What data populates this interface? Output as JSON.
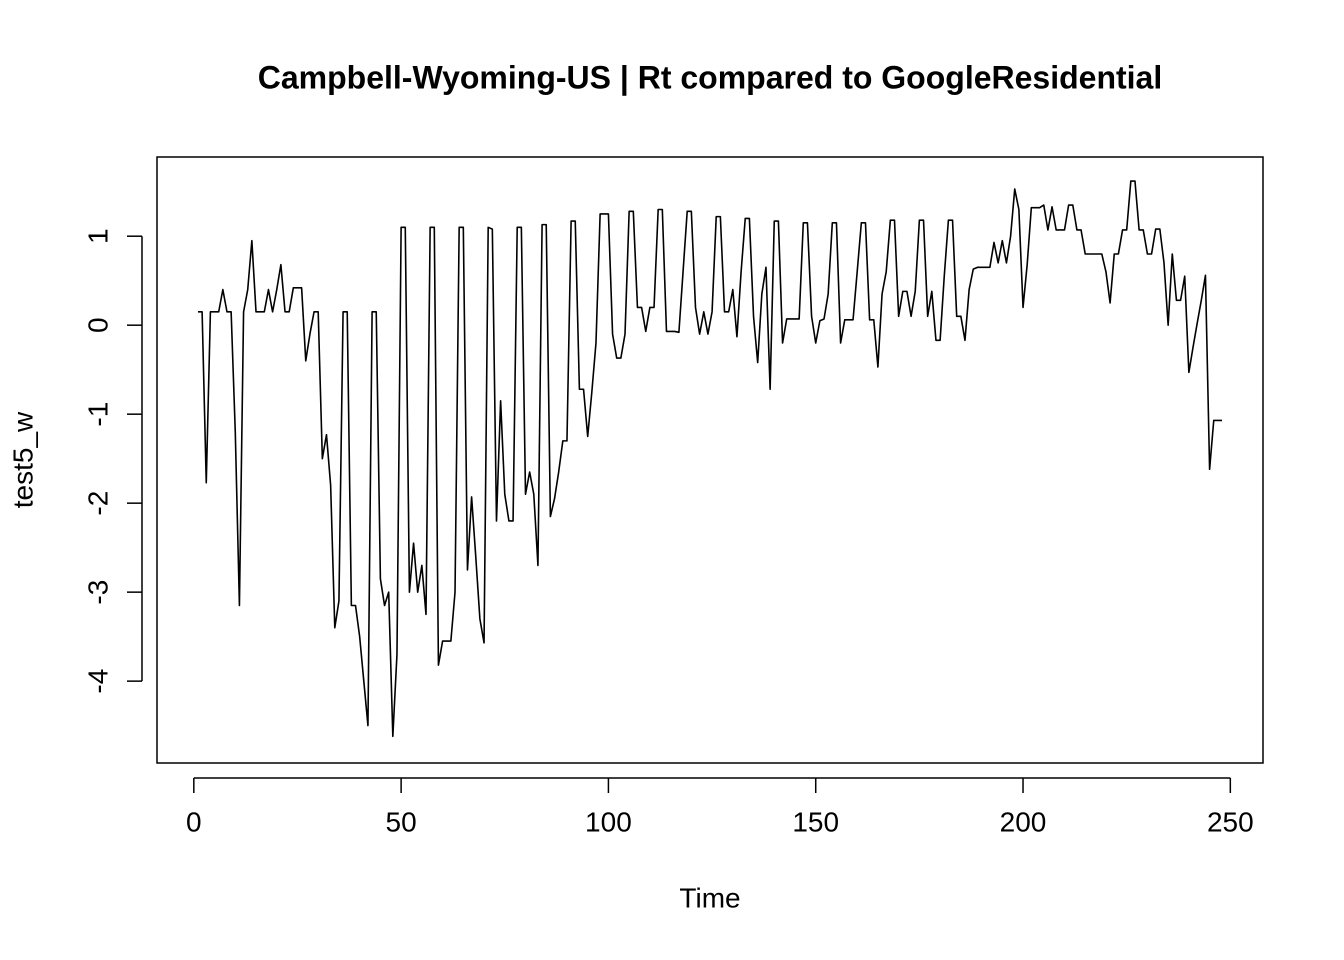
{
  "chart_data": {
    "type": "line",
    "title": "Campbell-Wyoming-US | Rt compared to GoogleResidential",
    "x_label": "Time",
    "y_label": "test5_w",
    "color": "#000000",
    "x": [
      1,
      2,
      3,
      4,
      5,
      6,
      7,
      8,
      9,
      10,
      11,
      12,
      13,
      14,
      15,
      16,
      17,
      18,
      19,
      20,
      21,
      22,
      23,
      24,
      25,
      26,
      27,
      28,
      29,
      30,
      31,
      32,
      33,
      34,
      35,
      36,
      37,
      38,
      39,
      40,
      41,
      42,
      43,
      44,
      45,
      46,
      47,
      48,
      49,
      50,
      51,
      52,
      53,
      54,
      55,
      56,
      57,
      58,
      59,
      60,
      61,
      62,
      63,
      64,
      65,
      66,
      67,
      68,
      69,
      70,
      71,
      72,
      73,
      74,
      75,
      76,
      77,
      78,
      79,
      80,
      81,
      82,
      83,
      84,
      85,
      86,
      87,
      88,
      89,
      90,
      91,
      92,
      93,
      94,
      95,
      96,
      97,
      98,
      99,
      100,
      101,
      102,
      103,
      104,
      105,
      106,
      107,
      108,
      109,
      110,
      111,
      112,
      113,
      114,
      115,
      116,
      117,
      118,
      119,
      120,
      121,
      122,
      123,
      124,
      125,
      126,
      127,
      128,
      129,
      130,
      131,
      132,
      133,
      134,
      135,
      136,
      137,
      138,
      139,
      140,
      141,
      142,
      143,
      144,
      145,
      146,
      147,
      148,
      149,
      150,
      151,
      152,
      153,
      154,
      155,
      156,
      157,
      158,
      159,
      160,
      161,
      162,
      163,
      164,
      165,
      166,
      167,
      168,
      169,
      170,
      171,
      172,
      173,
      174,
      175,
      176,
      177,
      178,
      179,
      180,
      181,
      182,
      183,
      184,
      185,
      186,
      187,
      188,
      189,
      190,
      191,
      192,
      193,
      194,
      195,
      196,
      197,
      198,
      199,
      200,
      201,
      202,
      203,
      204,
      205,
      206,
      207,
      208,
      209,
      210,
      211,
      212,
      213,
      214,
      215,
      216,
      217,
      218,
      219,
      220,
      221,
      222,
      223,
      224,
      225,
      226,
      227,
      228,
      229,
      230,
      231,
      232,
      233,
      234,
      235,
      236,
      237,
      238,
      239,
      240,
      241,
      242,
      243,
      244,
      245,
      246,
      247,
      248
    ],
    "values": [
      0.15,
      0.15,
      -1.77,
      0.15,
      0.15,
      0.15,
      0.4,
      0.15,
      0.15,
      -1.2,
      -3.15,
      0.15,
      0.4,
      0.95,
      0.15,
      0.15,
      0.15,
      0.4,
      0.15,
      0.4,
      0.68,
      0.15,
      0.15,
      0.42,
      0.42,
      0.42,
      -0.4,
      -0.1,
      0.15,
      0.15,
      -1.5,
      -1.23,
      -1.8,
      -3.4,
      -3.1,
      0.15,
      0.15,
      -3.15,
      -3.15,
      -3.5,
      -4.0,
      -4.5,
      0.15,
      0.15,
      -2.85,
      -3.15,
      -3.0,
      -4.62,
      -3.7,
      1.1,
      1.1,
      -3.0,
      -2.45,
      -3.0,
      -2.7,
      -3.25,
      1.1,
      1.1,
      -3.82,
      -3.55,
      -3.55,
      -3.55,
      -3.0,
      1.1,
      1.1,
      -2.75,
      -1.93,
      -2.6,
      -3.3,
      -3.57,
      1.1,
      1.08,
      -2.2,
      -0.85,
      -1.9,
      -2.2,
      -2.2,
      1.1,
      1.1,
      -1.9,
      -1.65,
      -1.9,
      -2.7,
      1.13,
      1.13,
      -2.15,
      -1.95,
      -1.65,
      -1.3,
      -1.3,
      1.17,
      1.17,
      -0.72,
      -0.72,
      -1.25,
      -0.75,
      -0.2,
      1.25,
      1.25,
      1.25,
      -0.1,
      -0.37,
      -0.37,
      -0.1,
      1.28,
      1.28,
      0.2,
      0.2,
      -0.07,
      0.2,
      0.2,
      1.3,
      1.3,
      -0.07,
      -0.07,
      -0.07,
      -0.08,
      0.6,
      1.28,
      1.28,
      0.2,
      -0.1,
      0.15,
      -0.1,
      0.15,
      1.22,
      1.22,
      0.15,
      0.15,
      0.4,
      -0.13,
      0.6,
      1.2,
      1.2,
      0.1,
      -0.42,
      0.35,
      0.65,
      -0.72,
      1.17,
      1.17,
      -0.2,
      0.07,
      0.07,
      0.07,
      0.07,
      1.15,
      1.15,
      0.1,
      -0.2,
      0.05,
      0.07,
      0.35,
      1.15,
      1.15,
      -0.2,
      0.06,
      0.06,
      0.06,
      0.6,
      1.15,
      1.15,
      0.06,
      0.06,
      -0.47,
      0.35,
      0.6,
      1.18,
      1.18,
      0.1,
      0.38,
      0.38,
      0.1,
      0.38,
      1.18,
      1.18,
      0.1,
      0.38,
      -0.17,
      -0.17,
      0.55,
      1.18,
      1.18,
      0.1,
      0.1,
      -0.17,
      0.4,
      0.63,
      0.65,
      0.65,
      0.65,
      0.65,
      0.93,
      0.7,
      0.95,
      0.7,
      1.0,
      1.53,
      1.3,
      0.2,
      0.68,
      1.32,
      1.32,
      1.32,
      1.35,
      1.07,
      1.33,
      1.07,
      1.07,
      1.07,
      1.35,
      1.35,
      1.07,
      1.07,
      0.8,
      0.8,
      0.8,
      0.8,
      0.8,
      0.6,
      0.25,
      0.8,
      0.8,
      1.07,
      1.07,
      1.62,
      1.62,
      1.07,
      1.07,
      0.8,
      0.8,
      1.08,
      1.08,
      0.7,
      0.0,
      0.8,
      0.28,
      0.28,
      0.55,
      -0.53,
      -0.25,
      0.02,
      0.28,
      0.56,
      -1.62,
      -1.07,
      -1.07,
      -1.07
    ],
    "xlim": [
      -8.88,
      257.88
    ],
    "xticks": [
      0,
      50,
      100,
      150,
      200,
      250
    ],
    "ylim": [
      -4.92,
      1.89
    ],
    "yticks": [
      -4,
      -3,
      -2,
      -1,
      0,
      1
    ]
  }
}
